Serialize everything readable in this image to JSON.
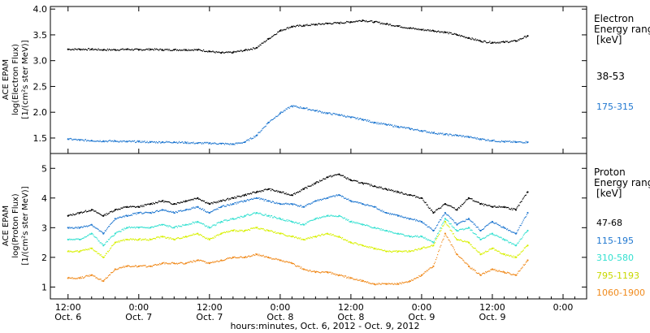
{
  "chart_data": [
    {
      "type": "scatter",
      "panel": "top",
      "ylabel_lines": [
        "ACE EPAM",
        "log(Electron Flux)",
        "[1/(cm²s ster MeV)]"
      ],
      "ylim": [
        1.2,
        4.05
      ],
      "yticks": [
        "1.5",
        "2.0",
        "2.5",
        "3.0",
        "3.5",
        "4.0"
      ],
      "legend": {
        "title_lines": [
          "Electron",
          "Energy ranges",
          "[keV]"
        ],
        "placement": "right"
      },
      "x_hours": [
        0,
        2,
        4,
        6,
        8,
        10,
        12,
        14,
        16,
        18,
        20,
        22,
        24,
        26,
        28,
        30,
        32,
        34,
        36,
        38,
        40,
        42,
        44,
        46,
        48,
        50,
        52,
        54,
        56,
        58,
        60,
        62,
        64,
        66,
        68,
        70,
        72,
        74,
        76,
        78
      ],
      "series": [
        {
          "name": "38-53",
          "color": "#000000",
          "values": [
            3.22,
            3.22,
            3.22,
            3.21,
            3.21,
            3.22,
            3.21,
            3.22,
            3.21,
            3.21,
            3.21,
            3.21,
            3.18,
            3.15,
            3.16,
            3.2,
            3.25,
            3.42,
            3.58,
            3.66,
            3.68,
            3.7,
            3.72,
            3.73,
            3.75,
            3.78,
            3.75,
            3.71,
            3.67,
            3.63,
            3.6,
            3.58,
            3.55,
            3.5,
            3.44,
            3.38,
            3.35,
            3.36,
            3.38,
            3.48
          ]
        },
        {
          "name": "175-315",
          "color": "#1f77d0",
          "values": [
            1.48,
            1.46,
            1.45,
            1.44,
            1.44,
            1.43,
            1.43,
            1.42,
            1.42,
            1.42,
            1.41,
            1.4,
            1.4,
            1.39,
            1.38,
            1.42,
            1.55,
            1.8,
            1.98,
            2.12,
            2.08,
            2.03,
            1.98,
            1.95,
            1.9,
            1.86,
            1.8,
            1.76,
            1.72,
            1.68,
            1.64,
            1.6,
            1.57,
            1.55,
            1.52,
            1.48,
            1.45,
            1.43,
            1.42,
            1.42
          ]
        }
      ]
    },
    {
      "type": "scatter",
      "panel": "bottom",
      "ylabel_lines": [
        "ACE EPAM",
        "log(Proton Flux)",
        "[1/(cm²s ster MeV)]"
      ],
      "ylim": [
        0.6,
        5.5
      ],
      "yticks": [
        "1",
        "2",
        "3",
        "4",
        "5"
      ],
      "legend": {
        "title_lines": [
          "Proton",
          "Energy ranges",
          "[keV]"
        ],
        "placement": "right"
      },
      "x_hours": [
        0,
        2,
        4,
        6,
        8,
        10,
        12,
        14,
        16,
        18,
        20,
        22,
        24,
        26,
        28,
        30,
        32,
        34,
        36,
        38,
        40,
        42,
        44,
        46,
        48,
        50,
        52,
        54,
        56,
        58,
        60,
        62,
        64,
        66,
        68,
        70,
        72,
        74,
        76,
        78
      ],
      "series": [
        {
          "name": "47-68",
          "color": "#000000",
          "values": [
            3.4,
            3.5,
            3.6,
            3.4,
            3.6,
            3.7,
            3.7,
            3.8,
            3.9,
            3.8,
            3.9,
            4.0,
            3.8,
            3.9,
            4.0,
            4.1,
            4.2,
            4.3,
            4.2,
            4.1,
            4.3,
            4.5,
            4.7,
            4.8,
            4.6,
            4.5,
            4.4,
            4.3,
            4.2,
            4.1,
            4.0,
            3.5,
            3.8,
            3.6,
            4.0,
            3.8,
            3.7,
            3.7,
            3.6,
            4.2
          ]
        },
        {
          "name": "115-195",
          "color": "#1f77d0",
          "values": [
            3.0,
            3.0,
            3.1,
            2.8,
            3.3,
            3.4,
            3.5,
            3.5,
            3.6,
            3.5,
            3.6,
            3.7,
            3.5,
            3.7,
            3.8,
            3.9,
            4.0,
            3.9,
            3.8,
            3.8,
            3.7,
            3.9,
            4.0,
            4.1,
            3.9,
            3.8,
            3.7,
            3.5,
            3.4,
            3.3,
            3.2,
            2.9,
            3.5,
            3.1,
            3.3,
            2.9,
            3.2,
            3.0,
            2.8,
            3.5
          ]
        },
        {
          "name": "310-580",
          "color": "#33e0d0",
          "values": [
            2.6,
            2.6,
            2.8,
            2.4,
            2.8,
            3.0,
            3.0,
            3.0,
            3.1,
            3.0,
            3.1,
            3.2,
            3.0,
            3.2,
            3.3,
            3.4,
            3.5,
            3.4,
            3.3,
            3.2,
            3.1,
            3.3,
            3.4,
            3.4,
            3.2,
            3.1,
            3.0,
            2.9,
            2.8,
            2.7,
            2.7,
            2.5,
            3.3,
            2.9,
            3.0,
            2.6,
            2.8,
            2.6,
            2.4,
            2.9
          ]
        },
        {
          "name": "795-1193",
          "color": "#d8f000",
          "values": [
            2.2,
            2.2,
            2.3,
            2.0,
            2.5,
            2.6,
            2.6,
            2.6,
            2.7,
            2.6,
            2.7,
            2.8,
            2.6,
            2.8,
            2.9,
            2.9,
            3.0,
            2.9,
            2.8,
            2.7,
            2.6,
            2.7,
            2.8,
            2.7,
            2.5,
            2.4,
            2.3,
            2.2,
            2.2,
            2.2,
            2.3,
            2.4,
            3.2,
            2.6,
            2.5,
            2.1,
            2.3,
            2.1,
            2.0,
            2.4
          ]
        },
        {
          "name": "1060-1900",
          "color": "#f08a1c",
          "values": [
            1.3,
            1.3,
            1.4,
            1.2,
            1.6,
            1.7,
            1.7,
            1.7,
            1.8,
            1.8,
            1.8,
            1.9,
            1.8,
            1.9,
            2.0,
            2.0,
            2.1,
            2.0,
            1.9,
            1.8,
            1.6,
            1.5,
            1.5,
            1.4,
            1.3,
            1.2,
            1.1,
            1.1,
            1.1,
            1.2,
            1.4,
            1.7,
            2.8,
            2.1,
            1.7,
            1.4,
            1.6,
            1.5,
            1.4,
            1.9
          ]
        }
      ]
    }
  ],
  "xaxis": {
    "label": "hours:minutes, Oct. 6, 2012 - Oct. 9, 2012",
    "ticks": [
      {
        "time": "12:00",
        "date": "Oct. 6",
        "hour": 0
      },
      {
        "time": "0:00",
        "date": "Oct. 7",
        "hour": 12
      },
      {
        "time": "12:00",
        "date": "Oct. 7",
        "hour": 24
      },
      {
        "time": "0:00",
        "date": "Oct. 8",
        "hour": 36
      },
      {
        "time": "12:00",
        "date": "Oct. 8",
        "hour": 48
      },
      {
        "time": "0:00",
        "date": "Oct. 9",
        "hour": 60
      },
      {
        "time": "12:00",
        "date": "Oct. 9",
        "hour": 72
      },
      {
        "time": "0:00",
        "date": "",
        "hour": 84
      }
    ],
    "xlim": [
      -3,
      88
    ]
  }
}
